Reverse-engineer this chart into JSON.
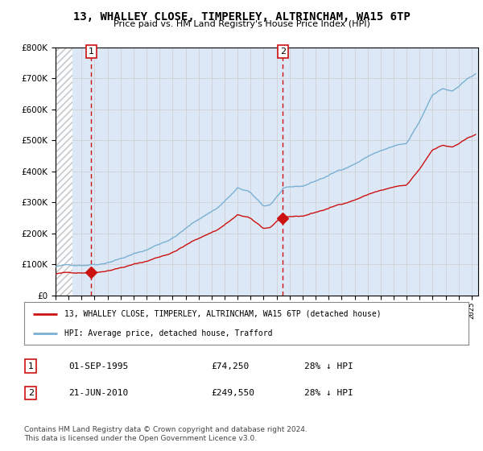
{
  "title": "13, WHALLEY CLOSE, TIMPERLEY, ALTRINCHAM, WA15 6TP",
  "subtitle": "Price paid vs. HM Land Registry's House Price Index (HPI)",
  "legend_line1": "13, WHALLEY CLOSE, TIMPERLEY, ALTRINCHAM, WA15 6TP (detached house)",
  "legend_line2": "HPI: Average price, detached house, Trafford",
  "annotation1_label": "1",
  "annotation1_date": "01-SEP-1995",
  "annotation1_price": "£74,250",
  "annotation1_hpi": "28% ↓ HPI",
  "annotation2_label": "2",
  "annotation2_date": "21-JUN-2010",
  "annotation2_price": "£249,550",
  "annotation2_hpi": "28% ↓ HPI",
  "footer": "Contains HM Land Registry data © Crown copyright and database right 2024.\nThis data is licensed under the Open Government Licence v3.0.",
  "sale1_year": 1995.75,
  "sale1_value": 74250,
  "sale2_year": 2010.47,
  "sale2_value": 249550,
  "hpi_color": "#7ab0d4",
  "price_color": "#cc1111",
  "vline_color": "#cc1111",
  "grid_color": "#cccccc",
  "ylim_max": 800000,
  "ylim_min": 0,
  "xlim_min": 1993.0,
  "xlim_max": 2025.5,
  "background_color": "#ffffff",
  "plot_bg_color": "#dce8f5"
}
